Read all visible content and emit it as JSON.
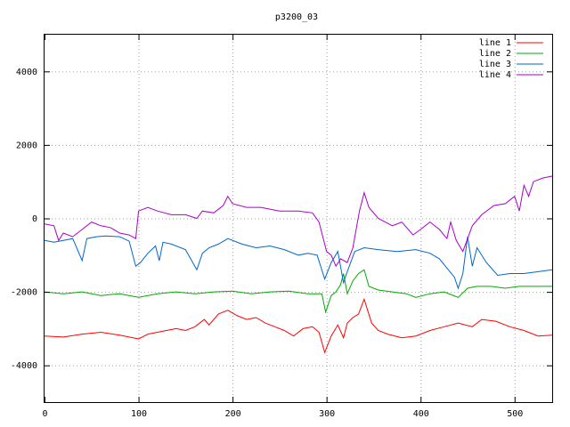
{
  "chart_data": {
    "type": "line",
    "title": "p3200_03",
    "xlabel": "",
    "ylabel": "",
    "xlim": [
      0,
      540
    ],
    "ylim": [
      -5000,
      5000
    ],
    "xticks": [
      0,
      100,
      200,
      300,
      400,
      500
    ],
    "yticks": [
      -4000,
      -2000,
      0,
      2000,
      4000
    ],
    "grid": true,
    "legend_position": "top-right",
    "series": [
      {
        "name": "line 1",
        "color": "#ff0000",
        "points": [
          [
            0,
            -3200
          ],
          [
            20,
            -3230
          ],
          [
            40,
            -3150
          ],
          [
            60,
            -3100
          ],
          [
            80,
            -3180
          ],
          [
            100,
            -3280
          ],
          [
            110,
            -3150
          ],
          [
            120,
            -3100
          ],
          [
            140,
            -3000
          ],
          [
            150,
            -3050
          ],
          [
            160,
            -2950
          ],
          [
            170,
            -2750
          ],
          [
            175,
            -2900
          ],
          [
            185,
            -2600
          ],
          [
            195,
            -2500
          ],
          [
            205,
            -2650
          ],
          [
            215,
            -2750
          ],
          [
            225,
            -2700
          ],
          [
            235,
            -2850
          ],
          [
            245,
            -2950
          ],
          [
            255,
            -3050
          ],
          [
            265,
            -3200
          ],
          [
            275,
            -3000
          ],
          [
            285,
            -2950
          ],
          [
            292,
            -3100
          ],
          [
            298,
            -3650
          ],
          [
            305,
            -3200
          ],
          [
            312,
            -2900
          ],
          [
            318,
            -3250
          ],
          [
            322,
            -2850
          ],
          [
            328,
            -2700
          ],
          [
            334,
            -2600
          ],
          [
            340,
            -2200
          ],
          [
            348,
            -2850
          ],
          [
            355,
            -3050
          ],
          [
            365,
            -3150
          ],
          [
            380,
            -3250
          ],
          [
            395,
            -3200
          ],
          [
            410,
            -3050
          ],
          [
            425,
            -2950
          ],
          [
            440,
            -2850
          ],
          [
            455,
            -2950
          ],
          [
            465,
            -2750
          ],
          [
            480,
            -2800
          ],
          [
            495,
            -2950
          ],
          [
            510,
            -3050
          ],
          [
            525,
            -3200
          ],
          [
            540,
            -3180
          ]
        ]
      },
      {
        "name": "line 2",
        "color": "#00aa00",
        "points": [
          [
            0,
            -2000
          ],
          [
            20,
            -2050
          ],
          [
            40,
            -2000
          ],
          [
            60,
            -2100
          ],
          [
            80,
            -2050
          ],
          [
            100,
            -2150
          ],
          [
            120,
            -2050
          ],
          [
            140,
            -2000
          ],
          [
            160,
            -2050
          ],
          [
            180,
            -2000
          ],
          [
            200,
            -1980
          ],
          [
            220,
            -2050
          ],
          [
            240,
            -2000
          ],
          [
            260,
            -1980
          ],
          [
            280,
            -2050
          ],
          [
            295,
            -2050
          ],
          [
            299,
            -2550
          ],
          [
            305,
            -2100
          ],
          [
            310,
            -2000
          ],
          [
            315,
            -1800
          ],
          [
            318,
            -1500
          ],
          [
            322,
            -2050
          ],
          [
            328,
            -1700
          ],
          [
            334,
            -1500
          ],
          [
            340,
            -1400
          ],
          [
            345,
            -1850
          ],
          [
            355,
            -1950
          ],
          [
            370,
            -2000
          ],
          [
            385,
            -2050
          ],
          [
            395,
            -2150
          ],
          [
            410,
            -2050
          ],
          [
            425,
            -2000
          ],
          [
            440,
            -2150
          ],
          [
            450,
            -1900
          ],
          [
            460,
            -1850
          ],
          [
            475,
            -1850
          ],
          [
            490,
            -1900
          ],
          [
            505,
            -1850
          ],
          [
            520,
            -1850
          ],
          [
            540,
            -1850
          ]
        ]
      },
      {
        "name": "line 3",
        "color": "#0066cc",
        "points": [
          [
            0,
            -600
          ],
          [
            10,
            -650
          ],
          [
            20,
            -600
          ],
          [
            30,
            -550
          ],
          [
            40,
            -1150
          ],
          [
            45,
            -550
          ],
          [
            55,
            -500
          ],
          [
            65,
            -480
          ],
          [
            80,
            -500
          ],
          [
            90,
            -620
          ],
          [
            97,
            -1300
          ],
          [
            102,
            -1200
          ],
          [
            110,
            -950
          ],
          [
            118,
            -750
          ],
          [
            122,
            -1150
          ],
          [
            126,
            -650
          ],
          [
            135,
            -700
          ],
          [
            150,
            -850
          ],
          [
            162,
            -1400
          ],
          [
            168,
            -950
          ],
          [
            175,
            -800
          ],
          [
            185,
            -700
          ],
          [
            195,
            -550
          ],
          [
            210,
            -700
          ],
          [
            225,
            -800
          ],
          [
            240,
            -750
          ],
          [
            255,
            -850
          ],
          [
            270,
            -1000
          ],
          [
            280,
            -950
          ],
          [
            290,
            -1000
          ],
          [
            298,
            -1650
          ],
          [
            305,
            -1200
          ],
          [
            312,
            -900
          ],
          [
            318,
            -1750
          ],
          [
            322,
            -1450
          ],
          [
            330,
            -900
          ],
          [
            340,
            -800
          ],
          [
            355,
            -850
          ],
          [
            375,
            -900
          ],
          [
            395,
            -850
          ],
          [
            410,
            -950
          ],
          [
            420,
            -1100
          ],
          [
            428,
            -1350
          ],
          [
            436,
            -1600
          ],
          [
            440,
            -1900
          ],
          [
            445,
            -1500
          ],
          [
            450,
            -500
          ],
          [
            455,
            -1300
          ],
          [
            460,
            -800
          ],
          [
            470,
            -1200
          ],
          [
            482,
            -1550
          ],
          [
            495,
            -1500
          ],
          [
            510,
            -1500
          ],
          [
            525,
            -1450
          ],
          [
            540,
            -1400
          ]
        ]
      },
      {
        "name": "line 4",
        "color": "#aa00cc",
        "points": [
          [
            0,
            -150
          ],
          [
            10,
            -200
          ],
          [
            15,
            -600
          ],
          [
            20,
            -400
          ],
          [
            30,
            -500
          ],
          [
            40,
            -300
          ],
          [
            50,
            -100
          ],
          [
            60,
            -200
          ],
          [
            70,
            -250
          ],
          [
            80,
            -400
          ],
          [
            90,
            -450
          ],
          [
            97,
            -550
          ],
          [
            100,
            200
          ],
          [
            110,
            300
          ],
          [
            120,
            200
          ],
          [
            135,
            100
          ],
          [
            150,
            100
          ],
          [
            162,
            0
          ],
          [
            168,
            200
          ],
          [
            180,
            150
          ],
          [
            190,
            350
          ],
          [
            195,
            600
          ],
          [
            200,
            400
          ],
          [
            215,
            300
          ],
          [
            230,
            300
          ],
          [
            250,
            200
          ],
          [
            270,
            200
          ],
          [
            285,
            150
          ],
          [
            292,
            -100
          ],
          [
            300,
            -900
          ],
          [
            305,
            -1000
          ],
          [
            310,
            -1300
          ],
          [
            315,
            -1100
          ],
          [
            322,
            -1200
          ],
          [
            328,
            -800
          ],
          [
            335,
            200
          ],
          [
            340,
            700
          ],
          [
            345,
            300
          ],
          [
            355,
            0
          ],
          [
            370,
            -200
          ],
          [
            380,
            -100
          ],
          [
            392,
            -450
          ],
          [
            400,
            -300
          ],
          [
            410,
            -100
          ],
          [
            420,
            -300
          ],
          [
            428,
            -550
          ],
          [
            432,
            -100
          ],
          [
            438,
            -600
          ],
          [
            445,
            -900
          ],
          [
            455,
            -200
          ],
          [
            465,
            100
          ],
          [
            478,
            350
          ],
          [
            490,
            400
          ],
          [
            500,
            600
          ],
          [
            505,
            200
          ],
          [
            510,
            900
          ],
          [
            515,
            600
          ],
          [
            520,
            1000
          ],
          [
            530,
            1100
          ],
          [
            540,
            1150
          ]
        ]
      }
    ]
  }
}
